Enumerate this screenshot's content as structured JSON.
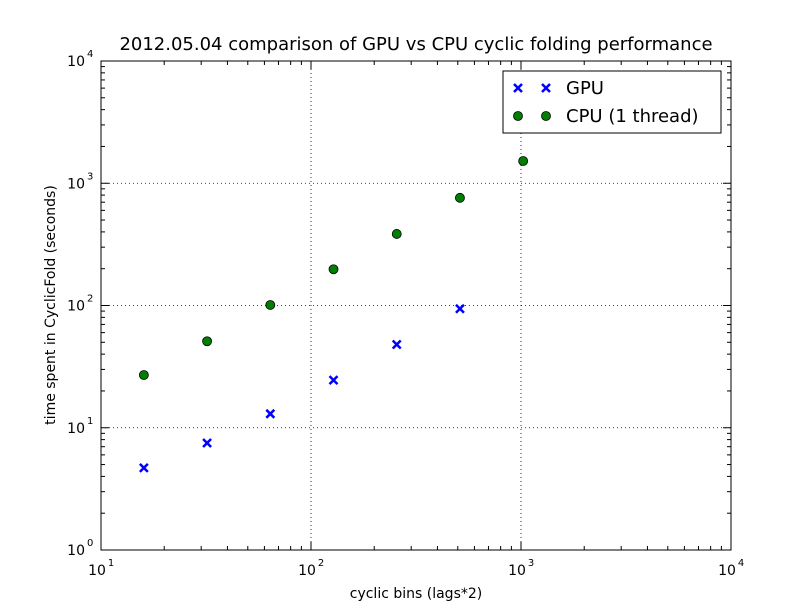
{
  "chart_data": {
    "type": "scatter",
    "title": "2012.05.04 comparison of GPU vs CPU cyclic folding performance",
    "xlabel": "cyclic bins (lags*2)",
    "ylabel": "time spent in CyclicFold (seconds)",
    "xscale": "log",
    "yscale": "log",
    "xlim": [
      10,
      10000
    ],
    "ylim": [
      1,
      10000
    ],
    "grid": true,
    "legend_position": "top-right",
    "x_ticks": [
      {
        "base": "10",
        "exp": "1",
        "value": 10
      },
      {
        "base": "10",
        "exp": "2",
        "value": 100
      },
      {
        "base": "10",
        "exp": "3",
        "value": 1000
      },
      {
        "base": "10",
        "exp": "4",
        "value": 10000
      }
    ],
    "y_ticks": [
      {
        "base": "10",
        "exp": "0",
        "value": 1
      },
      {
        "base": "10",
        "exp": "1",
        "value": 10
      },
      {
        "base": "10",
        "exp": "2",
        "value": 100
      },
      {
        "base": "10",
        "exp": "3",
        "value": 1000
      },
      {
        "base": "10",
        "exp": "4",
        "value": 10000
      }
    ],
    "series": [
      {
        "name": "GPU",
        "marker": "x",
        "color": "#0000ff",
        "x": [
          16,
          32,
          64,
          128,
          256,
          512
        ],
        "y": [
          4.7,
          7.5,
          13,
          24.5,
          48,
          94
        ]
      },
      {
        "name": "CPU (1 thread)",
        "marker": "circle",
        "color": "#007f00",
        "x": [
          16,
          32,
          64,
          128,
          256,
          512,
          1024
        ],
        "y": [
          27,
          51,
          101,
          198,
          385,
          760,
          1520
        ]
      }
    ]
  }
}
